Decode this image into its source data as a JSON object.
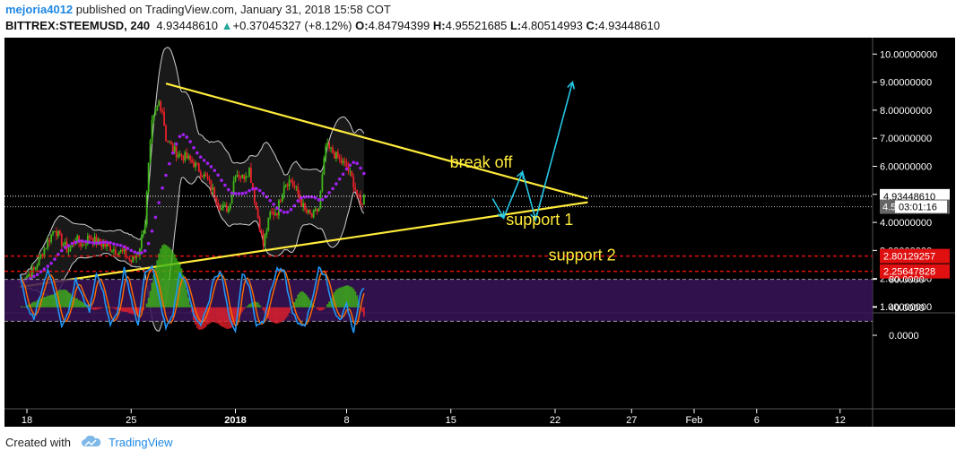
{
  "header": {
    "user": "mejoria4012",
    "published": "published on TradingView.com, January 31, 2018 15:58 COT",
    "symbol": "BITTREX:STEEMUSD, 240",
    "last": "4.93448610",
    "change": "+0.37045327 (+8.12%)",
    "o_label": "O:",
    "o_val": "4.84794399",
    "h_label": "H:",
    "h_val": "4.95521685",
    "l_label": "L:",
    "l_val": "4.80514993",
    "c_label": "C:",
    "c_val": "4.93448610"
  },
  "footer": {
    "created": "Created with",
    "brand": "TradingView"
  },
  "colors": {
    "bg": "#000000",
    "bull": "#3fb618",
    "bear": "#e8202a",
    "trend": "#ffeb3b",
    "arrow": "#27c8e8",
    "ma": "#a020f0",
    "bb": "#d0d0d0",
    "support": "#e01010",
    "k": "#2196f3",
    "d": "#ff6d00",
    "axis": "#ffffff"
  },
  "chart_data": [
    {
      "type": "candlestick",
      "price_axis": {
        "ticks": [
          "1.00000000",
          "2.00000000",
          "3.00000000",
          "4.00000000",
          "5.00000000",
          "6.00000000",
          "7.00000000",
          "8.00000000",
          "9.00000000",
          "10.00000000"
        ],
        "range": [
          1.0,
          10.0
        ]
      },
      "time_axis": {
        "ticks": [
          "18",
          "25",
          "2018",
          "8",
          "15",
          "22",
          "27",
          "Feb",
          "6",
          "12"
        ]
      },
      "current_price": {
        "label": "4.93448610",
        "value": 4.9344861
      },
      "countdown": {
        "label": "03:01:16",
        "partial": "4.5",
        "value": 4.56
      },
      "support_levels": [
        {
          "label": "2.80129257",
          "value": 2.80129257
        },
        {
          "label": "2.25647828",
          "value": 2.25647828
        }
      ],
      "annotations": [
        {
          "text": "break off",
          "value": 5.95
        },
        {
          "text": "support 1",
          "value": 3.9
        },
        {
          "text": "support 2",
          "value": 2.65
        }
      ],
      "triangle_upper": [
        [
          20.0,
          8.95
        ],
        [
          80.7,
          4.85
        ]
      ],
      "triangle_lower": [
        [
          -1.0,
          1.7
        ],
        [
          80.7,
          4.72
        ]
      ],
      "projection": [
        [
          67.0,
          4.85
        ],
        [
          68.6,
          4.16
        ],
        [
          71.3,
          5.8
        ],
        [
          73.2,
          4.1
        ],
        [
          78.5,
          9.0
        ]
      ],
      "key_prices": [
        [
          -1,
          1.9
        ],
        [
          0,
          2.1
        ],
        [
          1,
          2.3
        ],
        [
          2,
          2.8
        ],
        [
          3,
          3.3
        ],
        [
          4,
          3.8
        ],
        [
          5,
          3.3
        ],
        [
          6,
          3.0
        ],
        [
          7,
          3.4
        ],
        [
          8,
          3.2
        ],
        [
          9,
          3.5
        ],
        [
          10,
          3.3
        ],
        [
          11,
          3.2
        ],
        [
          12,
          3.1
        ],
        [
          13,
          3.0
        ],
        [
          14,
          2.9
        ],
        [
          15,
          2.6
        ],
        [
          16,
          2.9
        ],
        [
          17,
          4.0
        ],
        [
          17.5,
          6.0
        ],
        [
          18,
          7.5
        ],
        [
          19,
          8.3
        ],
        [
          19.5,
          8.0
        ],
        [
          20,
          7.0
        ],
        [
          21,
          6.6
        ],
        [
          22,
          6.4
        ],
        [
          23,
          6.3
        ],
        [
          24,
          6.1
        ],
        [
          25,
          5.8
        ],
        [
          26,
          5.5
        ],
        [
          27,
          5.0
        ],
        [
          28,
          4.5
        ],
        [
          29,
          4.5
        ],
        [
          30,
          5.8
        ],
        [
          31,
          5.6
        ],
        [
          32,
          5.9
        ],
        [
          33,
          4.5
        ],
        [
          34,
          3.2
        ],
        [
          35,
          4.3
        ],
        [
          36,
          4.4
        ],
        [
          37,
          5.4
        ],
        [
          38,
          5.5
        ],
        [
          39,
          5.0
        ],
        [
          40,
          4.4
        ],
        [
          41,
          4.2
        ],
        [
          42,
          4.5
        ],
        [
          43,
          6.7
        ],
        [
          44,
          6.5
        ],
        [
          45,
          6.2
        ],
        [
          46,
          6.0
        ],
        [
          47,
          5.4
        ],
        [
          48,
          4.6
        ],
        [
          48.5,
          4.93
        ]
      ],
      "candle_range": [
        -1.0,
        48.5
      ]
    },
    {
      "type": "stoch_rsi",
      "ticks": [
        "0.0000",
        "40.0000",
        "80.0000"
      ],
      "range": [
        -5,
        103
      ],
      "bands": [
        20,
        80
      ],
      "k_anchors": [
        [
          -1,
          85
        ],
        [
          0,
          40
        ],
        [
          1,
          25
        ],
        [
          2,
          60
        ],
        [
          3,
          95
        ],
        [
          4,
          60
        ],
        [
          5,
          15
        ],
        [
          6,
          35
        ],
        [
          7,
          80
        ],
        [
          8,
          55
        ],
        [
          9,
          35
        ],
        [
          10,
          90
        ],
        [
          11,
          60
        ],
        [
          12,
          15
        ],
        [
          13,
          30
        ],
        [
          14,
          95
        ],
        [
          15,
          50
        ],
        [
          16,
          15
        ],
        [
          17,
          90
        ],
        [
          18,
          100
        ],
        [
          19,
          55
        ],
        [
          20,
          10
        ],
        [
          21,
          30
        ],
        [
          22,
          90
        ],
        [
          23,
          70
        ],
        [
          24,
          30
        ],
        [
          25,
          15
        ],
        [
          26,
          40
        ],
        [
          27,
          85
        ],
        [
          28,
          90
        ],
        [
          29,
          30
        ],
        [
          30,
          5
        ],
        [
          31,
          90
        ],
        [
          32,
          70
        ],
        [
          33,
          15
        ],
        [
          34,
          20
        ],
        [
          35,
          60
        ],
        [
          36,
          95
        ],
        [
          37,
          90
        ],
        [
          38,
          40
        ],
        [
          39,
          15
        ],
        [
          40,
          15
        ],
        [
          41,
          50
        ],
        [
          42,
          95
        ],
        [
          43,
          85
        ],
        [
          44,
          40
        ],
        [
          45,
          20
        ],
        [
          46,
          45
        ],
        [
          47,
          5
        ],
        [
          48,
          60
        ],
        [
          48.5,
          65
        ]
      ]
    }
  ]
}
